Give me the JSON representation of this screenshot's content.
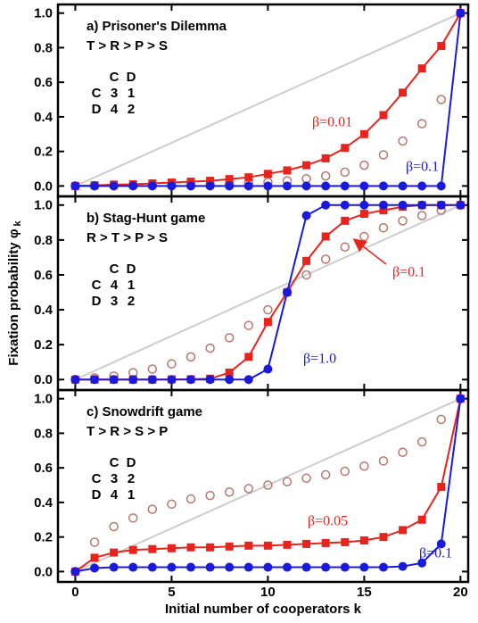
{
  "chart_data": [
    {
      "type": "line",
      "title": "a) Prisoner's Dilemma",
      "subtitle": "T > R > P > S",
      "matrix": {
        "columns": [
          "C",
          "D"
        ],
        "rows": [
          {
            "label": "C",
            "cells": [
              3,
              1
            ]
          },
          {
            "label": "D",
            "cells": [
              4,
              2
            ]
          }
        ]
      },
      "xlim": [
        -0.9,
        20.4
      ],
      "ylim": [
        -0.06,
        1.05
      ],
      "yticks": [
        {
          "value": 0,
          "label": "0.0"
        },
        0.2,
        0.4,
        0.6,
        0.8,
        {
          "value": 1,
          "label": "1.0"
        }
      ],
      "x": [
        0,
        1,
        2,
        3,
        4,
        5,
        6,
        7,
        8,
        9,
        10,
        11,
        12,
        13,
        14,
        15,
        16,
        17,
        18,
        19,
        20
      ],
      "series": [
        {
          "color": "#cccccc",
          "marker": "none",
          "line": true,
          "x": [
            0,
            20
          ],
          "values": [
            0,
            1
          ]
        },
        {
          "color": "#b8776e",
          "marker": "open-circle",
          "line": false,
          "values": [
            0,
            0.001,
            0.002,
            0.003,
            0.004,
            0.005,
            0.007,
            0.009,
            0.012,
            0.016,
            0.022,
            0.03,
            0.042,
            0.058,
            0.08,
            0.12,
            0.18,
            0.26,
            0.36,
            0.5,
            1.0
          ]
        },
        {
          "name": "β=0.01",
          "color": "#e8231c",
          "marker": "square",
          "line": true,
          "values": [
            0,
            0.004,
            0.008,
            0.01,
            0.015,
            0.02,
            0.025,
            0.03,
            0.04,
            0.05,
            0.07,
            0.09,
            0.12,
            0.16,
            0.22,
            0.3,
            0.41,
            0.54,
            0.68,
            0.81,
            1.0
          ]
        },
        {
          "name": "β=0.1",
          "color": "#1a1adc",
          "marker": "circle",
          "line": true,
          "values": [
            0,
            0,
            0,
            0,
            0,
            0,
            0,
            0,
            0,
            0,
            0,
            0,
            0,
            0,
            0,
            0,
            0,
            0,
            0,
            0,
            1.0
          ]
        }
      ]
    },
    {
      "type": "line",
      "title": "b) Stag-Hunt game",
      "subtitle": "R > T > P > S",
      "ylabel": "Fixation probability φ",
      "ylabel_sub": "k",
      "matrix": {
        "columns": [
          "C",
          "D"
        ],
        "rows": [
          {
            "label": "C",
            "cells": [
              4,
              1
            ]
          },
          {
            "label": "D",
            "cells": [
              3,
              2
            ]
          }
        ]
      },
      "xlim": [
        -0.9,
        20.4
      ],
      "ylim": [
        -0.06,
        1.05
      ],
      "yticks": [
        {
          "value": 0,
          "label": "0.0"
        },
        0.2,
        0.4,
        0.6,
        0.8,
        {
          "value": 1,
          "label": "1.0"
        }
      ],
      "x": [
        0,
        1,
        2,
        3,
        4,
        5,
        6,
        7,
        8,
        9,
        10,
        11,
        12,
        13,
        14,
        15,
        16,
        17,
        18,
        19,
        20
      ],
      "series": [
        {
          "color": "#cccccc",
          "marker": "none",
          "line": true,
          "x": [
            0,
            20
          ],
          "values": [
            0,
            1
          ]
        },
        {
          "color": "#b8776e",
          "marker": "open-circle",
          "line": false,
          "values": [
            0,
            0.01,
            0.02,
            0.04,
            0.06,
            0.09,
            0.13,
            0.18,
            0.24,
            0.31,
            0.4,
            0.5,
            0.6,
            0.69,
            0.76,
            0.82,
            0.87,
            0.91,
            0.94,
            0.97,
            1.0
          ]
        },
        {
          "name": "β=0.1",
          "color": "#e8231c",
          "marker": "square",
          "line": true,
          "values": [
            0,
            0,
            0,
            0,
            0,
            0.001,
            0.002,
            0.005,
            0.04,
            0.13,
            0.33,
            0.5,
            0.68,
            0.82,
            0.91,
            0.95,
            0.97,
            0.99,
            1.0,
            1.0,
            1.0
          ]
        },
        {
          "name": "β=1.0",
          "color": "#1a1adc",
          "marker": "circle",
          "line": true,
          "values": [
            0,
            0,
            0,
            0,
            0,
            0,
            0,
            0,
            0,
            0,
            0.06,
            0.5,
            0.94,
            1.0,
            1.0,
            1.0,
            1.0,
            1.0,
            1.0,
            1.0,
            1.0
          ]
        }
      ]
    },
    {
      "type": "line",
      "title": "c) Snowdrift game",
      "subtitle": "T > R > S > P",
      "xlabel": "Initial number of cooperators k",
      "matrix": {
        "columns": [
          "C",
          "D"
        ],
        "rows": [
          {
            "label": "C",
            "cells": [
              3,
              2
            ]
          },
          {
            "label": "D",
            "cells": [
              4,
              1
            ]
          }
        ]
      },
      "xlim": [
        -0.9,
        20.4
      ],
      "ylim": [
        -0.06,
        1.05
      ],
      "xticks": [
        0,
        5,
        10,
        15,
        20
      ],
      "yticks": [
        {
          "value": 0,
          "label": "0.0"
        },
        0.2,
        0.4,
        0.6,
        0.8,
        {
          "value": 1,
          "label": "1.0"
        }
      ],
      "x": [
        0,
        1,
        2,
        3,
        4,
        5,
        6,
        7,
        8,
        9,
        10,
        11,
        12,
        13,
        14,
        15,
        16,
        17,
        18,
        19,
        20
      ],
      "series": [
        {
          "color": "#cccccc",
          "marker": "none",
          "line": true,
          "x": [
            0,
            20
          ],
          "values": [
            0,
            1
          ]
        },
        {
          "color": "#b8776e",
          "marker": "open-circle",
          "line": false,
          "values": [
            0,
            0.17,
            0.26,
            0.31,
            0.36,
            0.39,
            0.42,
            0.44,
            0.46,
            0.48,
            0.5,
            0.52,
            0.54,
            0.56,
            0.58,
            0.61,
            0.64,
            0.69,
            0.75,
            0.88,
            1.0
          ]
        },
        {
          "name": "β=0.05",
          "color": "#e8231c",
          "marker": "square",
          "line": true,
          "values": [
            0,
            0.08,
            0.11,
            0.125,
            0.13,
            0.135,
            0.14,
            0.14,
            0.145,
            0.15,
            0.15,
            0.155,
            0.16,
            0.165,
            0.17,
            0.18,
            0.2,
            0.24,
            0.3,
            0.49,
            1.0
          ]
        },
        {
          "name": "β=0.1",
          "color": "#1a1adc",
          "marker": "circle",
          "line": true,
          "values": [
            0,
            0.02,
            0.025,
            0.025,
            0.025,
            0.025,
            0.025,
            0.025,
            0.025,
            0.025,
            0.025,
            0.025,
            0.025,
            0.025,
            0.025,
            0.025,
            0.025,
            0.03,
            0.05,
            0.16,
            1.0
          ]
        }
      ]
    }
  ]
}
